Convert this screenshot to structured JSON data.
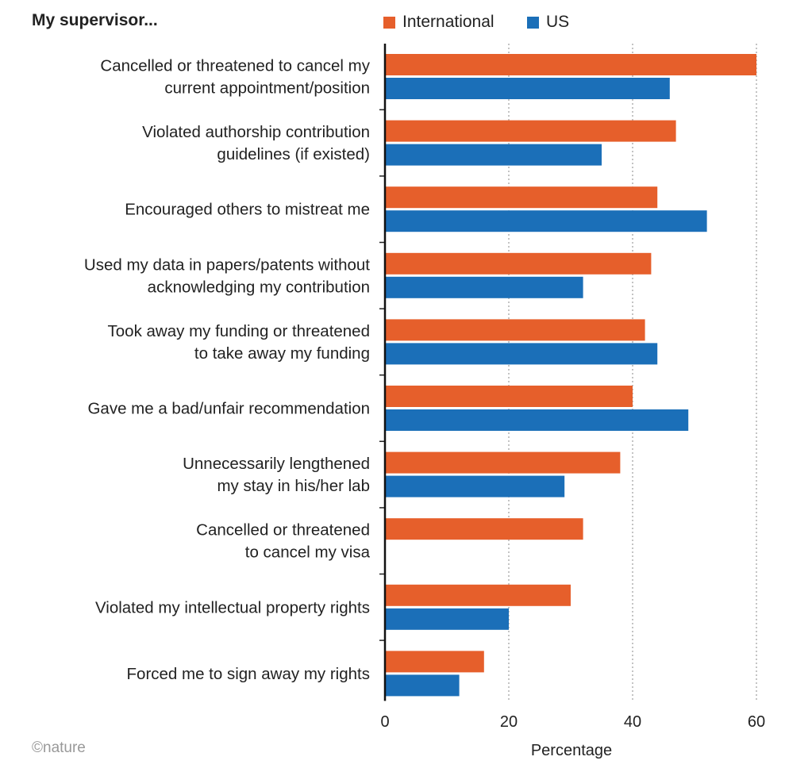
{
  "chart_data": {
    "type": "bar",
    "orientation": "horizontal",
    "title": "My supervisor...",
    "xlabel": "Percentage",
    "ylabel": "",
    "xlim": [
      0,
      60
    ],
    "xticks": [
      0,
      20,
      40,
      60
    ],
    "grid": "vertical dotted",
    "legend_position": "top",
    "colors": {
      "International": "#E65F2B",
      "US": "#1B6FB8"
    },
    "categories": [
      [
        "Cancelled or threatened to cancel my",
        "current appointment/position"
      ],
      [
        "Violated authorship contribution",
        "guidelines (if existed)"
      ],
      [
        "Encouraged others to mistreat me"
      ],
      [
        "Used my data in papers/patents without",
        "acknowledging my contribution"
      ],
      [
        "Took away my funding or threatened",
        "to take away my funding"
      ],
      [
        "Gave me a bad/unfair recommendation"
      ],
      [
        "Unnecessarily lengthened",
        "my stay in his/her lab"
      ],
      [
        "Cancelled or threatened",
        "to cancel my visa"
      ],
      [
        "Violated my intellectual property rights"
      ],
      [
        "Forced me to sign away my rights"
      ]
    ],
    "series": [
      {
        "name": "International",
        "values": [
          60,
          47,
          44,
          43,
          42,
          40,
          38,
          32,
          30,
          16
        ]
      },
      {
        "name": "US",
        "values": [
          46,
          35,
          52,
          32,
          44,
          49,
          29,
          null,
          20,
          12
        ]
      }
    ]
  },
  "credit": "©nature"
}
